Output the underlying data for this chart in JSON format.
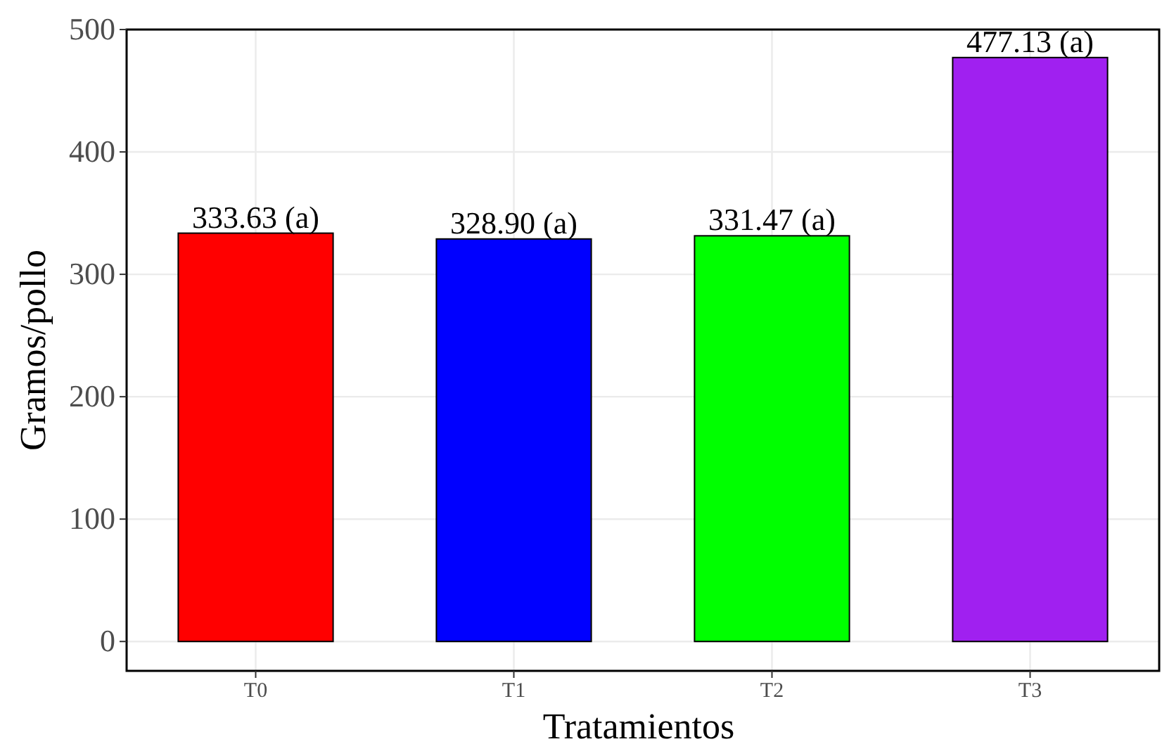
{
  "chart_data": {
    "type": "bar",
    "xlabel": "Tratamientos",
    "ylabel": "Gramos/pollo",
    "categories": [
      "T0",
      "T1",
      "T2",
      "T3"
    ],
    "values": [
      333.63,
      328.9,
      331.47,
      477.13
    ],
    "colors": [
      "#ff0000",
      "#0000ff",
      "#00ff00",
      "#a020f0"
    ],
    "value_labels": [
      "333.63 (a)",
      "328.90 (a)",
      "331.47 (a)",
      "477.13 (a)"
    ],
    "ylim": [
      -24,
      500
    ],
    "yticks": [
      0,
      100,
      200,
      300,
      400,
      500
    ],
    "grid": true
  }
}
